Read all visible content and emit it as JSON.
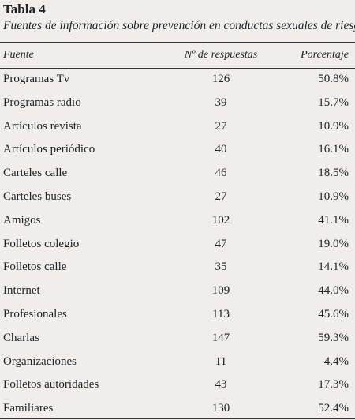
{
  "header": {
    "title": "Tabla 4",
    "subtitle": "Fuentes de información sobre prevención en conductas sexuales de riesgo"
  },
  "table": {
    "columns": [
      "Fuente",
      "Nº de respuestas",
      "Porcentaje"
    ],
    "rows": [
      [
        "Programas Tv",
        "126",
        "50.8%"
      ],
      [
        "Programas radio",
        "39",
        "15.7%"
      ],
      [
        "Artículos revista",
        "27",
        "10.9%"
      ],
      [
        "Artículos periódico",
        "40",
        "16.1%"
      ],
      [
        "Carteles calle",
        "46",
        "18.5%"
      ],
      [
        "Carteles buses",
        "27",
        "10.9%"
      ],
      [
        "Amigos",
        "102",
        "41.1%"
      ],
      [
        "Folletos colegio",
        "47",
        "19.0%"
      ],
      [
        "Folletos calle",
        "35",
        "14.1%"
      ],
      [
        "Internet",
        "109",
        "44.0%"
      ],
      [
        "Profesionales",
        "113",
        "45.6%"
      ],
      [
        "Charlas",
        "147",
        "59.3%"
      ],
      [
        "Organizaciones",
        "11",
        "4.4%"
      ],
      [
        "Folletos autoridades",
        "43",
        "17.3%"
      ],
      [
        "Familiares",
        "130",
        "52.4%"
      ]
    ]
  }
}
